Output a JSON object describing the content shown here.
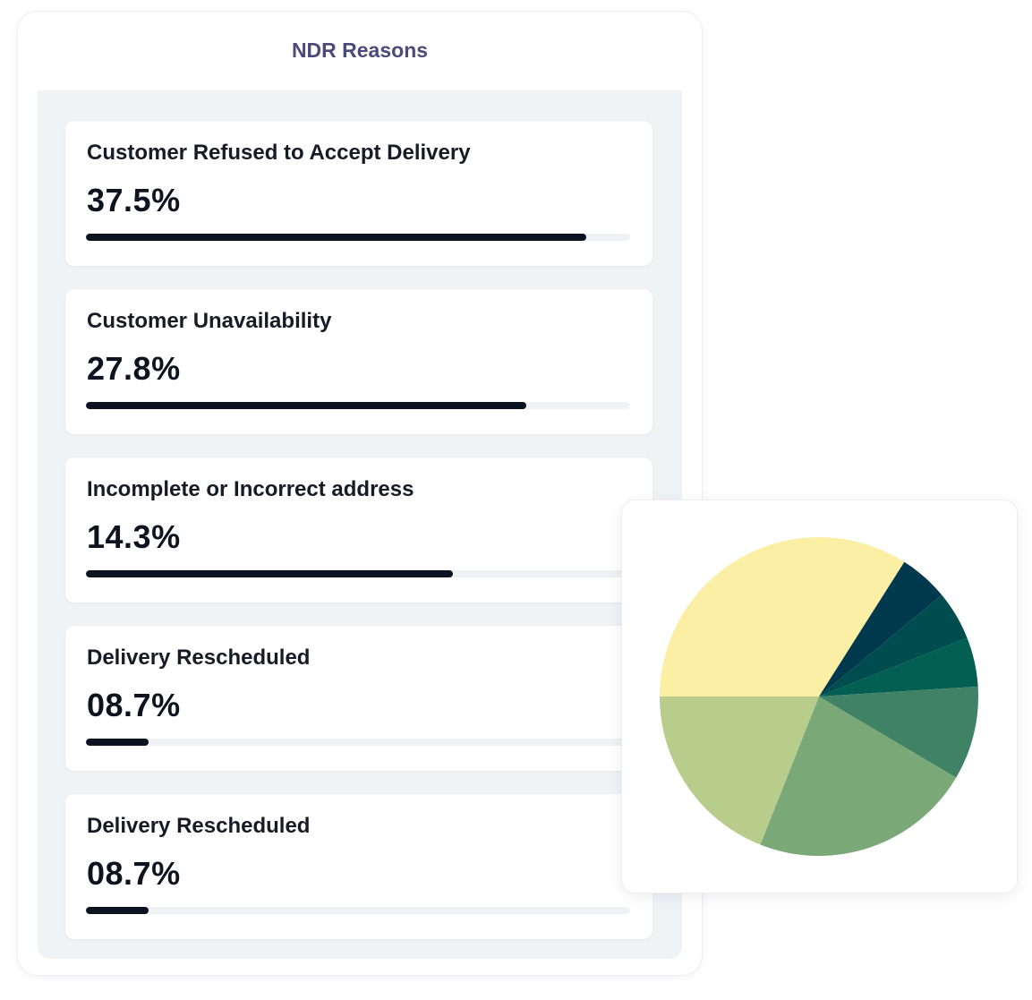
{
  "card": {
    "title": "NDR Reasons"
  },
  "reasons": [
    {
      "label": "Customer Refused to Accept Delivery",
      "value": "37.5%",
      "progress": 0.92
    },
    {
      "label": "Customer Unavailability",
      "value": "27.8%",
      "progress": 0.81
    },
    {
      "label": "Incomplete or Incorrect address",
      "value": "14.3%",
      "progress": 0.675
    },
    {
      "label": "Delivery Rescheduled",
      "value": "08.7%",
      "progress": 0.115
    },
    {
      "label": "Delivery Rescheduled",
      "value": "08.7%",
      "progress": 0.115
    }
  ],
  "chart_data": {
    "type": "pie",
    "start_angle_deg": 180,
    "direction": "clockwise",
    "slices": [
      {
        "value": 34.0,
        "color": "#fbeea5"
      },
      {
        "value": 5.0,
        "color": "#00384d"
      },
      {
        "value": 5.0,
        "color": "#004d50"
      },
      {
        "value": 5.0,
        "color": "#035f52"
      },
      {
        "value": 9.5,
        "color": "#408266"
      },
      {
        "value": 22.5,
        "color": "#7aa876"
      },
      {
        "value": 19.0,
        "color": "#b8cd8b"
      }
    ]
  }
}
